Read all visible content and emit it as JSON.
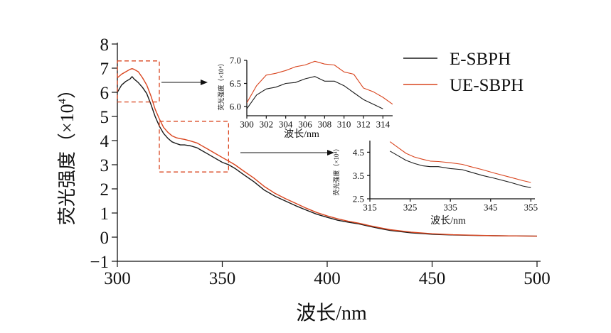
{
  "chart_data": [
    {
      "type": "line",
      "xlabel": "波长/nm",
      "ylabel": "荧光强度（×10⁴）",
      "ylabel_main": "荧光强度（×10",
      "ylabel_exp": "4",
      "ylabel_close": "）",
      "xlim": [
        300,
        500
      ],
      "ylim": [
        -1,
        8
      ],
      "xticks": [
        "300",
        "350",
        "400",
        "450",
        "500"
      ],
      "yticks": [
        "8",
        "7",
        "6",
        "5",
        "4",
        "3",
        "2",
        "1",
        "0",
        "−1"
      ],
      "series": [
        {
          "name": "E-SBPH",
          "color": "#1a1a1a",
          "x": [
            300,
            302,
            304,
            306,
            307,
            308,
            310,
            312,
            314,
            316,
            318,
            320,
            322,
            324,
            326,
            328,
            330,
            332,
            335,
            338,
            340,
            343,
            346,
            350,
            353,
            356,
            360,
            365,
            370,
            375,
            380,
            385,
            390,
            395,
            400,
            405,
            410,
            415,
            420,
            425,
            430,
            440,
            450,
            460,
            470,
            480,
            490,
            500
          ],
          "y": [
            6.0,
            6.3,
            6.45,
            6.55,
            6.65,
            6.55,
            6.4,
            6.2,
            5.95,
            5.5,
            5.0,
            4.6,
            4.3,
            4.1,
            3.95,
            3.88,
            3.82,
            3.82,
            3.78,
            3.7,
            3.6,
            3.45,
            3.3,
            3.1,
            3.0,
            2.85,
            2.6,
            2.3,
            1.95,
            1.7,
            1.5,
            1.3,
            1.12,
            0.95,
            0.82,
            0.7,
            0.62,
            0.55,
            0.45,
            0.36,
            0.28,
            0.18,
            0.12,
            0.09,
            0.07,
            0.06,
            0.05,
            0.04
          ]
        },
        {
          "name": "UE-SBPH",
          "color": "#d9451f",
          "x": [
            300,
            302,
            304,
            306,
            307,
            308,
            310,
            312,
            314,
            316,
            318,
            320,
            322,
            324,
            326,
            328,
            330,
            332,
            335,
            338,
            340,
            343,
            346,
            350,
            353,
            356,
            360,
            365,
            370,
            375,
            380,
            385,
            390,
            395,
            400,
            405,
            410,
            415,
            420,
            425,
            430,
            440,
            450,
            460,
            470,
            480,
            490,
            500
          ],
          "y": [
            6.6,
            6.75,
            6.85,
            6.95,
            6.98,
            6.95,
            6.85,
            6.6,
            6.3,
            5.85,
            5.3,
            4.9,
            4.55,
            4.35,
            4.2,
            4.12,
            4.08,
            4.05,
            3.98,
            3.9,
            3.8,
            3.65,
            3.5,
            3.3,
            3.15,
            3.0,
            2.75,
            2.45,
            2.1,
            1.82,
            1.6,
            1.4,
            1.2,
            1.02,
            0.88,
            0.76,
            0.66,
            0.58,
            0.48,
            0.39,
            0.31,
            0.21,
            0.14,
            0.1,
            0.08,
            0.06,
            0.05,
            0.04
          ]
        }
      ],
      "legend": "top-right",
      "zoom_regions": [
        {
          "xlim": [
            300,
            320
          ],
          "ylim": [
            5.6,
            7.3
          ],
          "color": "#d9451f"
        },
        {
          "xlim": [
            320,
            353
          ],
          "ylim": [
            2.7,
            4.8
          ],
          "color": "#d9451f"
        }
      ]
    },
    {
      "type": "line",
      "xlabel": "波长/nm",
      "ylabel": "荧光强度（×10⁴）",
      "xlim": [
        300,
        315
      ],
      "ylim": [
        5.8,
        7.0
      ],
      "xticks": [
        "300",
        "302",
        "304",
        "306",
        "308",
        "310",
        "312",
        "314"
      ],
      "yticks": [
        "7.0",
        "6.5",
        "6.0"
      ],
      "series": [
        {
          "name": "E-SBPH",
          "x": [
            300,
            301,
            302,
            303,
            304,
            305,
            306,
            307,
            308,
            309,
            310,
            311,
            312,
            313,
            314
          ],
          "y": [
            5.95,
            6.25,
            6.38,
            6.42,
            6.5,
            6.52,
            6.6,
            6.65,
            6.55,
            6.55,
            6.45,
            6.3,
            6.15,
            6.05,
            5.95
          ]
        },
        {
          "name": "UE-SBPH",
          "x": [
            300,
            301,
            302,
            303,
            304,
            305,
            306,
            307,
            308,
            309,
            310,
            311,
            312,
            313,
            314,
            315
          ],
          "y": [
            6.08,
            6.45,
            6.68,
            6.72,
            6.78,
            6.86,
            6.9,
            6.98,
            6.92,
            6.9,
            6.75,
            6.7,
            6.4,
            6.32,
            6.2,
            6.05
          ]
        }
      ]
    },
    {
      "type": "line",
      "xlabel": "波长/nm",
      "ylabel": "荧光强度（×10⁴）",
      "xlim": [
        315,
        356
      ],
      "ylim": [
        2.5,
        5.0
      ],
      "xticks": [
        "315",
        "325",
        "335",
        "345",
        "355"
      ],
      "yticks": [
        "4.5",
        "3.5",
        "2.5"
      ],
      "series": [
        {
          "name": "E-SBPH",
          "x": [
            320,
            322,
            324,
            326,
            328,
            330,
            332,
            335,
            338,
            340,
            343,
            346,
            350,
            353,
            355
          ],
          "y": [
            4.55,
            4.35,
            4.15,
            4.02,
            3.92,
            3.88,
            3.88,
            3.8,
            3.75,
            3.65,
            3.5,
            3.38,
            3.2,
            3.05,
            2.98
          ]
        },
        {
          "name": "UE-SBPH",
          "x": [
            320,
            322,
            324,
            326,
            328,
            330,
            332,
            335,
            338,
            340,
            343,
            346,
            350,
            353,
            355
          ],
          "y": [
            4.95,
            4.7,
            4.45,
            4.3,
            4.2,
            4.12,
            4.1,
            4.05,
            3.98,
            3.88,
            3.75,
            3.6,
            3.42,
            3.28,
            3.2
          ]
        }
      ]
    }
  ]
}
